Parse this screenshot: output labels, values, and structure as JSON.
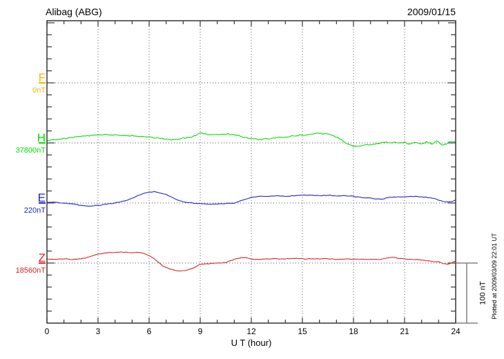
{
  "chart_data": {
    "type": "line",
    "title": "Alibag (ABG)",
    "date": "2009/01/15",
    "xlabel": "U T (hour)",
    "x_ticks": [
      0,
      3,
      6,
      9,
      12,
      15,
      18,
      21,
      24
    ],
    "x_range": [
      0,
      24
    ],
    "grid": "dotted vertical lines every 3 hours, dotted horizontal baseline per component",
    "y_tick_interval_nT": 20,
    "baseline_spacing_nT": 100,
    "scale_bar": {
      "label": "100 nT",
      "nT": 100
    },
    "plotted_at": "Plotted at 2009/03/09 22:01 UT",
    "frame_color": "#333333",
    "grid_color": "#555555",
    "scalebar_color": "#808080",
    "series": [
      {
        "name": "F",
        "base_value_label": "0nT",
        "color": "#FFB300",
        "points_nT": []
      },
      {
        "name": "H",
        "base_value_label": "37800nT",
        "color": "#00DD00",
        "points_nT": [
          [
            0,
            4
          ],
          [
            0.5,
            5
          ],
          [
            1,
            7
          ],
          [
            1.5,
            9
          ],
          [
            2,
            11
          ],
          [
            2.5,
            12
          ],
          [
            3,
            13
          ],
          [
            3.5,
            14
          ],
          [
            4,
            13
          ],
          [
            4.5,
            12
          ],
          [
            5,
            12
          ],
          [
            5.5,
            11
          ],
          [
            6,
            10
          ],
          [
            6.5,
            8
          ],
          [
            7,
            6
          ],
          [
            7.4,
            5
          ],
          [
            7.7,
            6
          ],
          [
            8,
            8
          ],
          [
            8.5,
            10
          ],
          [
            9,
            16
          ],
          [
            9.3,
            15
          ],
          [
            9.6,
            14
          ],
          [
            10,
            14
          ],
          [
            10.5,
            15
          ],
          [
            11,
            14
          ],
          [
            11.5,
            10
          ],
          [
            12,
            7
          ],
          [
            12.5,
            6
          ],
          [
            13,
            7
          ],
          [
            13.5,
            9
          ],
          [
            14,
            10
          ],
          [
            14.5,
            12
          ],
          [
            15,
            13
          ],
          [
            15.5,
            15
          ],
          [
            16,
            16
          ],
          [
            16.3,
            15
          ],
          [
            16.7,
            13
          ],
          [
            17,
            10
          ],
          [
            17.3,
            5
          ],
          [
            17.6,
            -2
          ],
          [
            18,
            -5
          ],
          [
            18.4,
            -5
          ],
          [
            18.8,
            -3
          ],
          [
            19.2,
            -2
          ],
          [
            19.5,
            -1
          ],
          [
            19.8,
            1
          ],
          [
            20.1,
            0
          ],
          [
            20.4,
            2
          ],
          [
            20.7,
            -1
          ],
          [
            21,
            1
          ],
          [
            21.3,
            -2
          ],
          [
            21.6,
            1
          ],
          [
            22,
            -1
          ],
          [
            22.3,
            2
          ],
          [
            22.6,
            -2
          ],
          [
            22.9,
            3
          ],
          [
            23.2,
            -4
          ],
          [
            23.5,
            -1
          ],
          [
            23.7,
            3
          ],
          [
            24,
            1
          ]
        ]
      },
      {
        "name": "E",
        "base_value_label": "220nT",
        "color": "#2222CC",
        "points_nT": [
          [
            0,
            1
          ],
          [
            0.5,
            1
          ],
          [
            1,
            0
          ],
          [
            1.5,
            -2
          ],
          [
            2,
            -4
          ],
          [
            2.5,
            -5
          ],
          [
            3,
            -4
          ],
          [
            3.5,
            -2
          ],
          [
            4,
            0
          ],
          [
            4.5,
            3
          ],
          [
            5,
            8
          ],
          [
            5.5,
            14
          ],
          [
            6,
            18
          ],
          [
            6.3,
            19
          ],
          [
            6.6,
            17
          ],
          [
            7,
            14
          ],
          [
            7.5,
            7
          ],
          [
            8,
            2
          ],
          [
            8.5,
            0
          ],
          [
            9,
            -1
          ],
          [
            9.5,
            -2
          ],
          [
            10,
            -2
          ],
          [
            10.5,
            -1
          ],
          [
            11,
            0
          ],
          [
            11.5,
            5
          ],
          [
            12,
            9
          ],
          [
            12.5,
            11
          ],
          [
            13,
            11
          ],
          [
            13.5,
            12
          ],
          [
            14,
            11
          ],
          [
            14.5,
            12
          ],
          [
            15,
            13
          ],
          [
            15.5,
            13
          ],
          [
            16,
            12
          ],
          [
            16.5,
            13
          ],
          [
            17,
            12
          ],
          [
            17.5,
            12
          ],
          [
            18,
            11
          ],
          [
            18.5,
            9
          ],
          [
            19,
            8
          ],
          [
            19.3,
            7
          ],
          [
            19.7,
            6
          ],
          [
            20,
            9
          ],
          [
            20.5,
            10
          ],
          [
            21,
            10
          ],
          [
            21.5,
            11
          ],
          [
            22,
            10
          ],
          [
            22.5,
            9
          ],
          [
            23,
            5
          ],
          [
            23.4,
            2
          ],
          [
            23.7,
            2
          ],
          [
            24,
            5
          ]
        ]
      },
      {
        "name": "Z",
        "base_value_label": "18560nT",
        "color": "#DD2222",
        "points_nT": [
          [
            0,
            7
          ],
          [
            0.5,
            6
          ],
          [
            1,
            7
          ],
          [
            1.5,
            6
          ],
          [
            2,
            7
          ],
          [
            2.5,
            10
          ],
          [
            3,
            15
          ],
          [
            3.5,
            17
          ],
          [
            4,
            18
          ],
          [
            4.5,
            18
          ],
          [
            5,
            17
          ],
          [
            5.4,
            18
          ],
          [
            5.7,
            16
          ],
          [
            6,
            13
          ],
          [
            6.4,
            5
          ],
          [
            6.8,
            -5
          ],
          [
            7.2,
            -10
          ],
          [
            7.6,
            -13
          ],
          [
            8,
            -13
          ],
          [
            8.4,
            -10
          ],
          [
            8.7,
            -7
          ],
          [
            9,
            -2
          ],
          [
            9.5,
            -1
          ],
          [
            10,
            0
          ],
          [
            10.5,
            1
          ],
          [
            11,
            6
          ],
          [
            11.4,
            9
          ],
          [
            11.7,
            9
          ],
          [
            12,
            7
          ],
          [
            12.5,
            6
          ],
          [
            13,
            7
          ],
          [
            13.5,
            7
          ],
          [
            14,
            7
          ],
          [
            14.5,
            8
          ],
          [
            15,
            7
          ],
          [
            15.5,
            7
          ],
          [
            16,
            7
          ],
          [
            16.5,
            7
          ],
          [
            17,
            6
          ],
          [
            17.5,
            7
          ],
          [
            18,
            6
          ],
          [
            18.5,
            7
          ],
          [
            19,
            6
          ],
          [
            19.5,
            6
          ],
          [
            20,
            8
          ],
          [
            20.3,
            10
          ],
          [
            20.6,
            8
          ],
          [
            21,
            7
          ],
          [
            21.5,
            6
          ],
          [
            22,
            5
          ],
          [
            22.5,
            3
          ],
          [
            23,
            2
          ],
          [
            23.3,
            -1
          ],
          [
            23.6,
            -2
          ],
          [
            23.8,
            1
          ],
          [
            24,
            3
          ]
        ]
      }
    ]
  }
}
